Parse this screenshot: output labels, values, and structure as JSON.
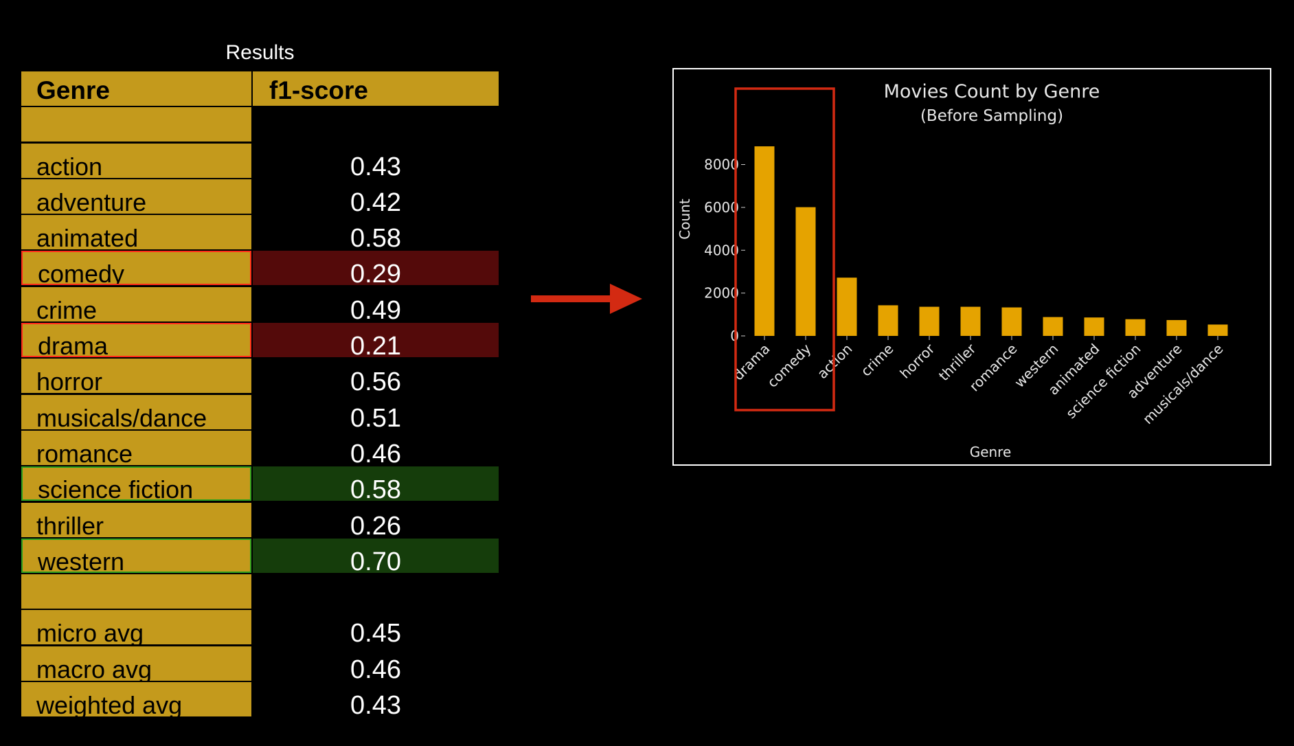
{
  "table": {
    "caption": "Results",
    "headers": [
      "Genre",
      "f1-score"
    ],
    "rows": [
      {
        "genre": "",
        "score": "",
        "highlight": "none"
      },
      {
        "genre": "action",
        "score": "0.43",
        "highlight": "none"
      },
      {
        "genre": "adventure",
        "score": "0.42",
        "highlight": "none"
      },
      {
        "genre": "animated",
        "score": "0.58",
        "highlight": "none"
      },
      {
        "genre": "comedy",
        "score": "0.29",
        "highlight": "bad"
      },
      {
        "genre": "crime",
        "score": "0.49",
        "highlight": "none"
      },
      {
        "genre": "drama",
        "score": "0.21",
        "highlight": "bad"
      },
      {
        "genre": "horror",
        "score": "0.56",
        "highlight": "none"
      },
      {
        "genre": "musicals/dance",
        "score": "0.51",
        "highlight": "none"
      },
      {
        "genre": "romance",
        "score": "0.46",
        "highlight": "none"
      },
      {
        "genre": "science fiction",
        "score": "0.58",
        "highlight": "good"
      },
      {
        "genre": "thriller",
        "score": "0.26",
        "highlight": "none"
      },
      {
        "genre": "western",
        "score": "0.70",
        "highlight": "good"
      },
      {
        "genre": "",
        "score": "",
        "highlight": "none"
      },
      {
        "genre": "micro avg",
        "score": "0.45",
        "highlight": "none"
      },
      {
        "genre": "macro avg",
        "score": "0.46",
        "highlight": "none"
      },
      {
        "genre": "weighted avg",
        "score": "0.43",
        "highlight": "none"
      }
    ]
  },
  "colors": {
    "cell_gold": "#c49a1c",
    "bar": "#e5a300",
    "bad_fill": "#540a0a",
    "good_fill": "#153d0b",
    "bad_outline": "#ff2a1a",
    "good_outline": "#2da01f",
    "arrow": "#d32a12",
    "frame": "#ffffff"
  },
  "chart_data": {
    "type": "bar",
    "title": "Movies Count by Genre",
    "subtitle": "(Before Sampling)",
    "xlabel": "Genre",
    "ylabel": "Count",
    "categories": [
      "drama",
      "comedy",
      "action",
      "crime",
      "horror",
      "thriller",
      "romance",
      "western",
      "animated",
      "science fiction",
      "adventure",
      "musicals/dance"
    ],
    "values": [
      8850,
      6010,
      2720,
      1430,
      1360,
      1360,
      1330,
      880,
      860,
      780,
      740,
      530
    ],
    "yticks": [
      0,
      2000,
      4000,
      6000,
      8000
    ],
    "ylim": [
      0,
      9300
    ],
    "highlighted_categories": [
      "drama",
      "comedy"
    ],
    "grid": false,
    "legend": "none"
  }
}
